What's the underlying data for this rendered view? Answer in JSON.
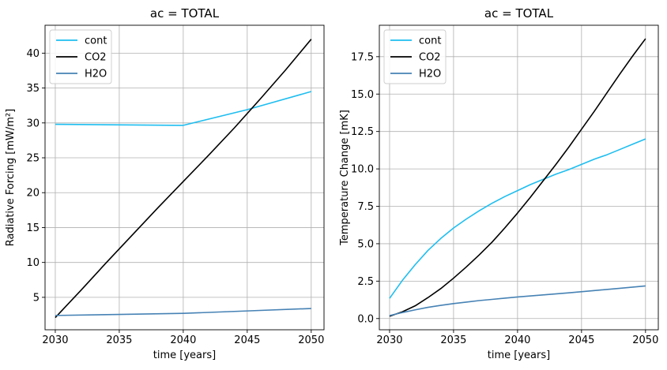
{
  "chart_data": [
    {
      "type": "line",
      "title": "ac = TOTAL",
      "xlabel": "time [years]",
      "ylabel": "Radiative Forcing [mW/m²]",
      "xlim": [
        2029.2,
        2051
      ],
      "ylim": [
        0.35,
        44.0
      ],
      "xticks": [
        2030,
        2035,
        2040,
        2045,
        2050
      ],
      "yticks": [
        5,
        10,
        15,
        20,
        25,
        30,
        35,
        40
      ],
      "grid": true,
      "legend_position": "top-left",
      "series": [
        {
          "name": "cont",
          "color": "#1ebef0",
          "x": [
            2030,
            2040,
            2045,
            2050
          ],
          "y": [
            29.8,
            29.65,
            31.9,
            34.5
          ]
        },
        {
          "name": "CO2",
          "color": "#000000",
          "x": [
            2030,
            2032,
            2034,
            2036,
            2038,
            2040,
            2042,
            2044,
            2046,
            2048,
            2050
          ],
          "y": [
            2.1,
            6.0,
            10.0,
            13.9,
            17.8,
            21.6,
            25.4,
            29.3,
            33.4,
            37.6,
            42.0
          ]
        },
        {
          "name": "H2O",
          "color": "#4682b4",
          "x": [
            2030,
            2035,
            2040,
            2045,
            2050
          ],
          "y": [
            2.4,
            2.55,
            2.7,
            3.05,
            3.4
          ]
        }
      ]
    },
    {
      "type": "line",
      "title": "ac = TOTAL",
      "xlabel": "time [years]",
      "ylabel": "Temperature Change [mK]",
      "xlim": [
        2029.2,
        2051
      ],
      "ylim": [
        -0.75,
        19.6
      ],
      "xticks": [
        2030,
        2035,
        2040,
        2045,
        2050
      ],
      "yticks": [
        0.0,
        2.5,
        5.0,
        7.5,
        10.0,
        12.5,
        15.0,
        17.5
      ],
      "ytick_labels": [
        "0.0",
        "2.5",
        "5.0",
        "7.5",
        "10.0",
        "12.5",
        "15.0",
        "17.5"
      ],
      "grid": true,
      "legend_position": "top-left",
      "series": [
        {
          "name": "cont",
          "color": "#1ebef0",
          "x": [
            2030,
            2031,
            2032,
            2033,
            2034,
            2035,
            2036,
            2037,
            2038,
            2039,
            2040,
            2041,
            2042,
            2043,
            2044,
            2045,
            2046,
            2047,
            2048,
            2049,
            2050
          ],
          "y": [
            1.35,
            2.55,
            3.6,
            4.55,
            5.35,
            6.05,
            6.65,
            7.2,
            7.7,
            8.15,
            8.55,
            8.95,
            9.3,
            9.65,
            9.95,
            10.3,
            10.65,
            10.95,
            11.3,
            11.65,
            12.0
          ]
        },
        {
          "name": "CO2",
          "color": "#000000",
          "x": [
            2030,
            2031,
            2032,
            2033,
            2034,
            2035,
            2036,
            2037,
            2038,
            2039,
            2040,
            2041,
            2042,
            2043,
            2044,
            2045,
            2046,
            2047,
            2048,
            2049,
            2050
          ],
          "y": [
            0.15,
            0.45,
            0.85,
            1.4,
            2.0,
            2.7,
            3.45,
            4.25,
            5.1,
            6.05,
            7.05,
            8.1,
            9.2,
            10.3,
            11.45,
            12.65,
            13.85,
            15.1,
            16.35,
            17.55,
            18.7
          ]
        },
        {
          "name": "H2O",
          "color": "#4682b4",
          "x": [
            2030,
            2031,
            2032,
            2033,
            2034,
            2035,
            2036,
            2037,
            2038,
            2039,
            2040,
            2042,
            2044,
            2046,
            2048,
            2050
          ],
          "y": [
            0.2,
            0.4,
            0.58,
            0.75,
            0.88,
            1.0,
            1.1,
            1.2,
            1.28,
            1.36,
            1.44,
            1.58,
            1.72,
            1.87,
            2.02,
            2.18
          ]
        }
      ]
    }
  ]
}
